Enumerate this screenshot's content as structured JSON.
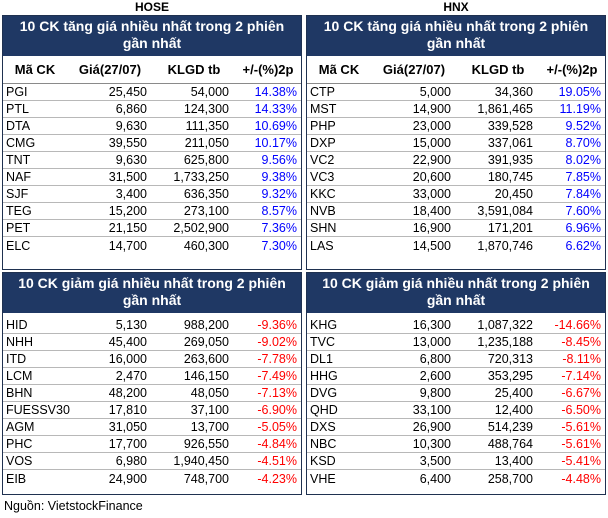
{
  "exchanges": {
    "left": "HOSE",
    "right": "HNX"
  },
  "columns": [
    "Mã CK",
    "Giá(27/07)",
    "KLGD tb",
    "+/-(%)2p"
  ],
  "gain_title": "10 CK tăng giá nhiều nhất trong 2 phiên gần nhất",
  "loss_title": "10 CK giảm giá nhiều nhất trong 2 phiên gần nhất",
  "hose_gainers": [
    [
      "PGI",
      "25,450",
      "54,000",
      "14.38%"
    ],
    [
      "PTL",
      "6,860",
      "124,300",
      "14.33%"
    ],
    [
      "DTA",
      "9,630",
      "111,350",
      "10.69%"
    ],
    [
      "CMG",
      "39,550",
      "211,050",
      "10.17%"
    ],
    [
      "TNT",
      "9,630",
      "625,800",
      "9.56%"
    ],
    [
      "NAF",
      "31,500",
      "1,733,250",
      "9.38%"
    ],
    [
      "SJF",
      "3,400",
      "636,350",
      "9.32%"
    ],
    [
      "TEG",
      "15,200",
      "273,100",
      "8.57%"
    ],
    [
      "PET",
      "21,150",
      "2,502,900",
      "7.36%"
    ],
    [
      "ELC",
      "14,700",
      "460,300",
      "7.30%"
    ]
  ],
  "hnx_gainers": [
    [
      "CTP",
      "5,000",
      "34,360",
      "19.05%"
    ],
    [
      "MST",
      "14,900",
      "1,861,465",
      "11.19%"
    ],
    [
      "PHP",
      "23,000",
      "339,528",
      "9.52%"
    ],
    [
      "DXP",
      "15,000",
      "337,061",
      "8.70%"
    ],
    [
      "VC2",
      "22,900",
      "391,935",
      "8.02%"
    ],
    [
      "VC3",
      "20,600",
      "180,745",
      "7.85%"
    ],
    [
      "KKC",
      "33,000",
      "20,450",
      "7.84%"
    ],
    [
      "NVB",
      "18,400",
      "3,591,084",
      "7.60%"
    ],
    [
      "SHN",
      "16,900",
      "171,201",
      "6.96%"
    ],
    [
      "LAS",
      "14,500",
      "1,870,746",
      "6.62%"
    ]
  ],
  "hose_losers": [
    [
      "HID",
      "5,130",
      "988,200",
      "-9.36%"
    ],
    [
      "NHH",
      "45,400",
      "269,050",
      "-9.02%"
    ],
    [
      "ITD",
      "16,000",
      "263,600",
      "-7.78%"
    ],
    [
      "LCM",
      "2,470",
      "146,150",
      "-7.49%"
    ],
    [
      "BHN",
      "48,200",
      "48,050",
      "-7.13%"
    ],
    [
      "FUESSV30",
      "17,810",
      "37,100",
      "-6.90%"
    ],
    [
      "AGM",
      "31,050",
      "13,700",
      "-5.05%"
    ],
    [
      "PHC",
      "17,700",
      "926,550",
      "-4.84%"
    ],
    [
      "VOS",
      "6,980",
      "1,940,450",
      "-4.51%"
    ],
    [
      "EIB",
      "24,900",
      "748,700",
      "-4.23%"
    ]
  ],
  "hnx_losers": [
    [
      "KHG",
      "16,300",
      "1,087,322",
      "-14.66%"
    ],
    [
      "TVC",
      "13,000",
      "1,235,188",
      "-8.45%"
    ],
    [
      "DL1",
      "6,800",
      "720,313",
      "-8.11%"
    ],
    [
      "HHG",
      "2,600",
      "353,295",
      "-7.14%"
    ],
    [
      "DVG",
      "9,800",
      "25,400",
      "-6.67%"
    ],
    [
      "QHD",
      "33,100",
      "12,400",
      "-6.50%"
    ],
    [
      "DXS",
      "26,900",
      "514,239",
      "-5.61%"
    ],
    [
      "NBC",
      "10,300",
      "488,764",
      "-5.61%"
    ],
    [
      "KSD",
      "3,500",
      "13,400",
      "-5.41%"
    ],
    [
      "VHE",
      "6,400",
      "258,700",
      "-4.48%"
    ]
  ],
  "source": "Nguồn: VietstockFinance",
  "colors": {
    "header_bg": "#1f3864",
    "up": "#0000ff",
    "down": "#ff0000"
  }
}
